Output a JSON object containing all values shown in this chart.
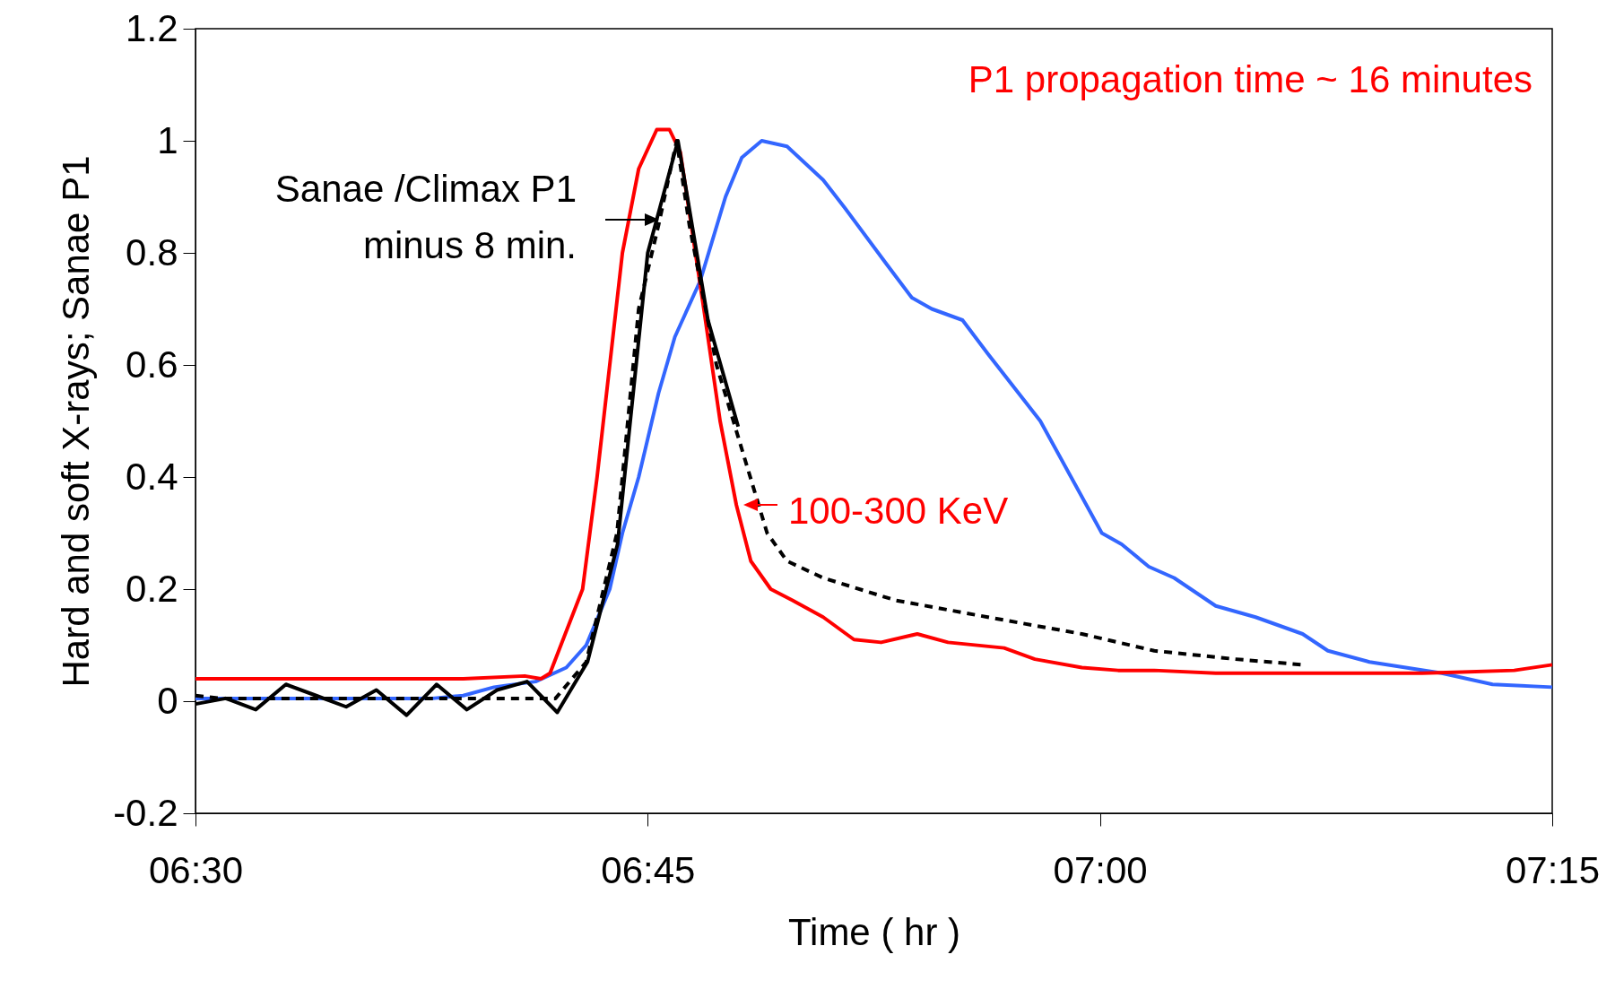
{
  "chart_data": {
    "type": "line",
    "xlabel": "Time ( hr )",
    "ylabel": "Hard and soft X-rays; Sanae P1",
    "xlim": [
      6.5,
      7.25
    ],
    "xticks": [
      {
        "value": 6.5,
        "label": "06:30"
      },
      {
        "value": 6.75,
        "label": "06:45"
      },
      {
        "value": 7,
        "label": "07:00"
      },
      {
        "value": 7.25,
        "label": "07:15"
      }
    ],
    "ylim": [
      -0.2,
      1.2
    ],
    "yticks": [
      -0.2,
      0,
      0.2,
      0.4,
      0.6,
      0.8,
      1,
      1.2
    ],
    "grid": false,
    "marker": "none",
    "series": [
      {
        "color": "#3366ff",
        "line_style": "solid",
        "x": [
          6.5,
          6.631,
          6.648,
          6.665,
          6.688,
          6.705,
          6.716,
          6.729,
          6.736,
          6.745,
          6.756,
          6.765,
          6.779,
          6.793,
          6.802,
          6.813,
          6.827,
          6.847,
          6.859,
          6.882,
          6.896,
          6.907,
          6.924,
          6.938,
          6.967,
          6.984,
          7.001,
          7.012,
          7.027,
          7.041,
          7.064,
          7.086,
          7.112,
          7.126,
          7.149,
          7.189,
          7.217,
          7.25
        ],
        "values": [
          0.005,
          0.005,
          0.01,
          0.025,
          0.035,
          0.06,
          0.1,
          0.2,
          0.3,
          0.4,
          0.55,
          0.65,
          0.75,
          0.9,
          0.97,
          1.0,
          0.99,
          0.93,
          0.88,
          0.78,
          0.72,
          0.7,
          0.68,
          0.62,
          0.5,
          0.4,
          0.3,
          0.28,
          0.24,
          0.22,
          0.17,
          0.15,
          0.12,
          0.09,
          0.07,
          0.05,
          0.03,
          0.025
        ]
      },
      {
        "color": "#ff0000",
        "line_style": "solid",
        "x": [
          6.5,
          6.648,
          6.682,
          6.691,
          6.696,
          6.702,
          6.714,
          6.722,
          6.729,
          6.736,
          6.745,
          6.755,
          6.762,
          6.768,
          6.781,
          6.79,
          6.799,
          6.807,
          6.818,
          6.83,
          6.847,
          6.864,
          6.879,
          6.899,
          6.916,
          6.947,
          6.964,
          6.99,
          7.01,
          7.03,
          7.064,
          7.178,
          7.2,
          7.229,
          7.25
        ],
        "values": [
          0.04,
          0.04,
          0.045,
          0.04,
          0.05,
          0.1,
          0.2,
          0.4,
          0.6,
          0.8,
          0.95,
          1.02,
          1.02,
          0.98,
          0.7,
          0.5,
          0.35,
          0.25,
          0.2,
          0.18,
          0.15,
          0.11,
          0.105,
          0.12,
          0.105,
          0.095,
          0.075,
          0.06,
          0.055,
          0.055,
          0.05,
          0.05,
          0.052,
          0.055,
          0.065
        ]
      },
      {
        "color": "#000000",
        "line_style": "dotted",
        "x": [
          6.5,
          6.514,
          6.699,
          6.716,
          6.733,
          6.745,
          6.756,
          6.766,
          6.773,
          6.788,
          6.802,
          6.816,
          6.827,
          6.847,
          6.887,
          6.938,
          6.99,
          7.03,
          7.075,
          7.112
        ],
        "values": [
          0.01,
          0.005,
          0.005,
          0.07,
          0.3,
          0.7,
          0.85,
          1.0,
          0.85,
          0.6,
          0.45,
          0.3,
          0.25,
          0.22,
          0.18,
          0.15,
          0.12,
          0.09,
          0.075,
          0.065
        ]
      },
      {
        "color": "#000000",
        "line_style": "solid",
        "x": [
          6.5,
          6.5167,
          6.5333,
          6.55,
          6.5667,
          6.5833,
          6.6,
          6.6167,
          6.6333,
          6.65,
          6.6667,
          6.6833,
          6.7,
          6.7167,
          6.7333,
          6.75,
          6.7667,
          6.7833,
          6.8
        ],
        "values": [
          -0.005,
          0.005,
          -0.015,
          0.03,
          0.01,
          -0.01,
          0.02,
          -0.025,
          0.03,
          -0.015,
          0.02,
          0.035,
          -0.02,
          0.07,
          0.28,
          0.8,
          1.0,
          0.68,
          0.49
        ]
      }
    ],
    "annotations": [
      "P1 propagation time ~ 16 minutes",
      "Sanae /Climax P1\nminus 8 min.",
      "100-300 KeV"
    ]
  }
}
